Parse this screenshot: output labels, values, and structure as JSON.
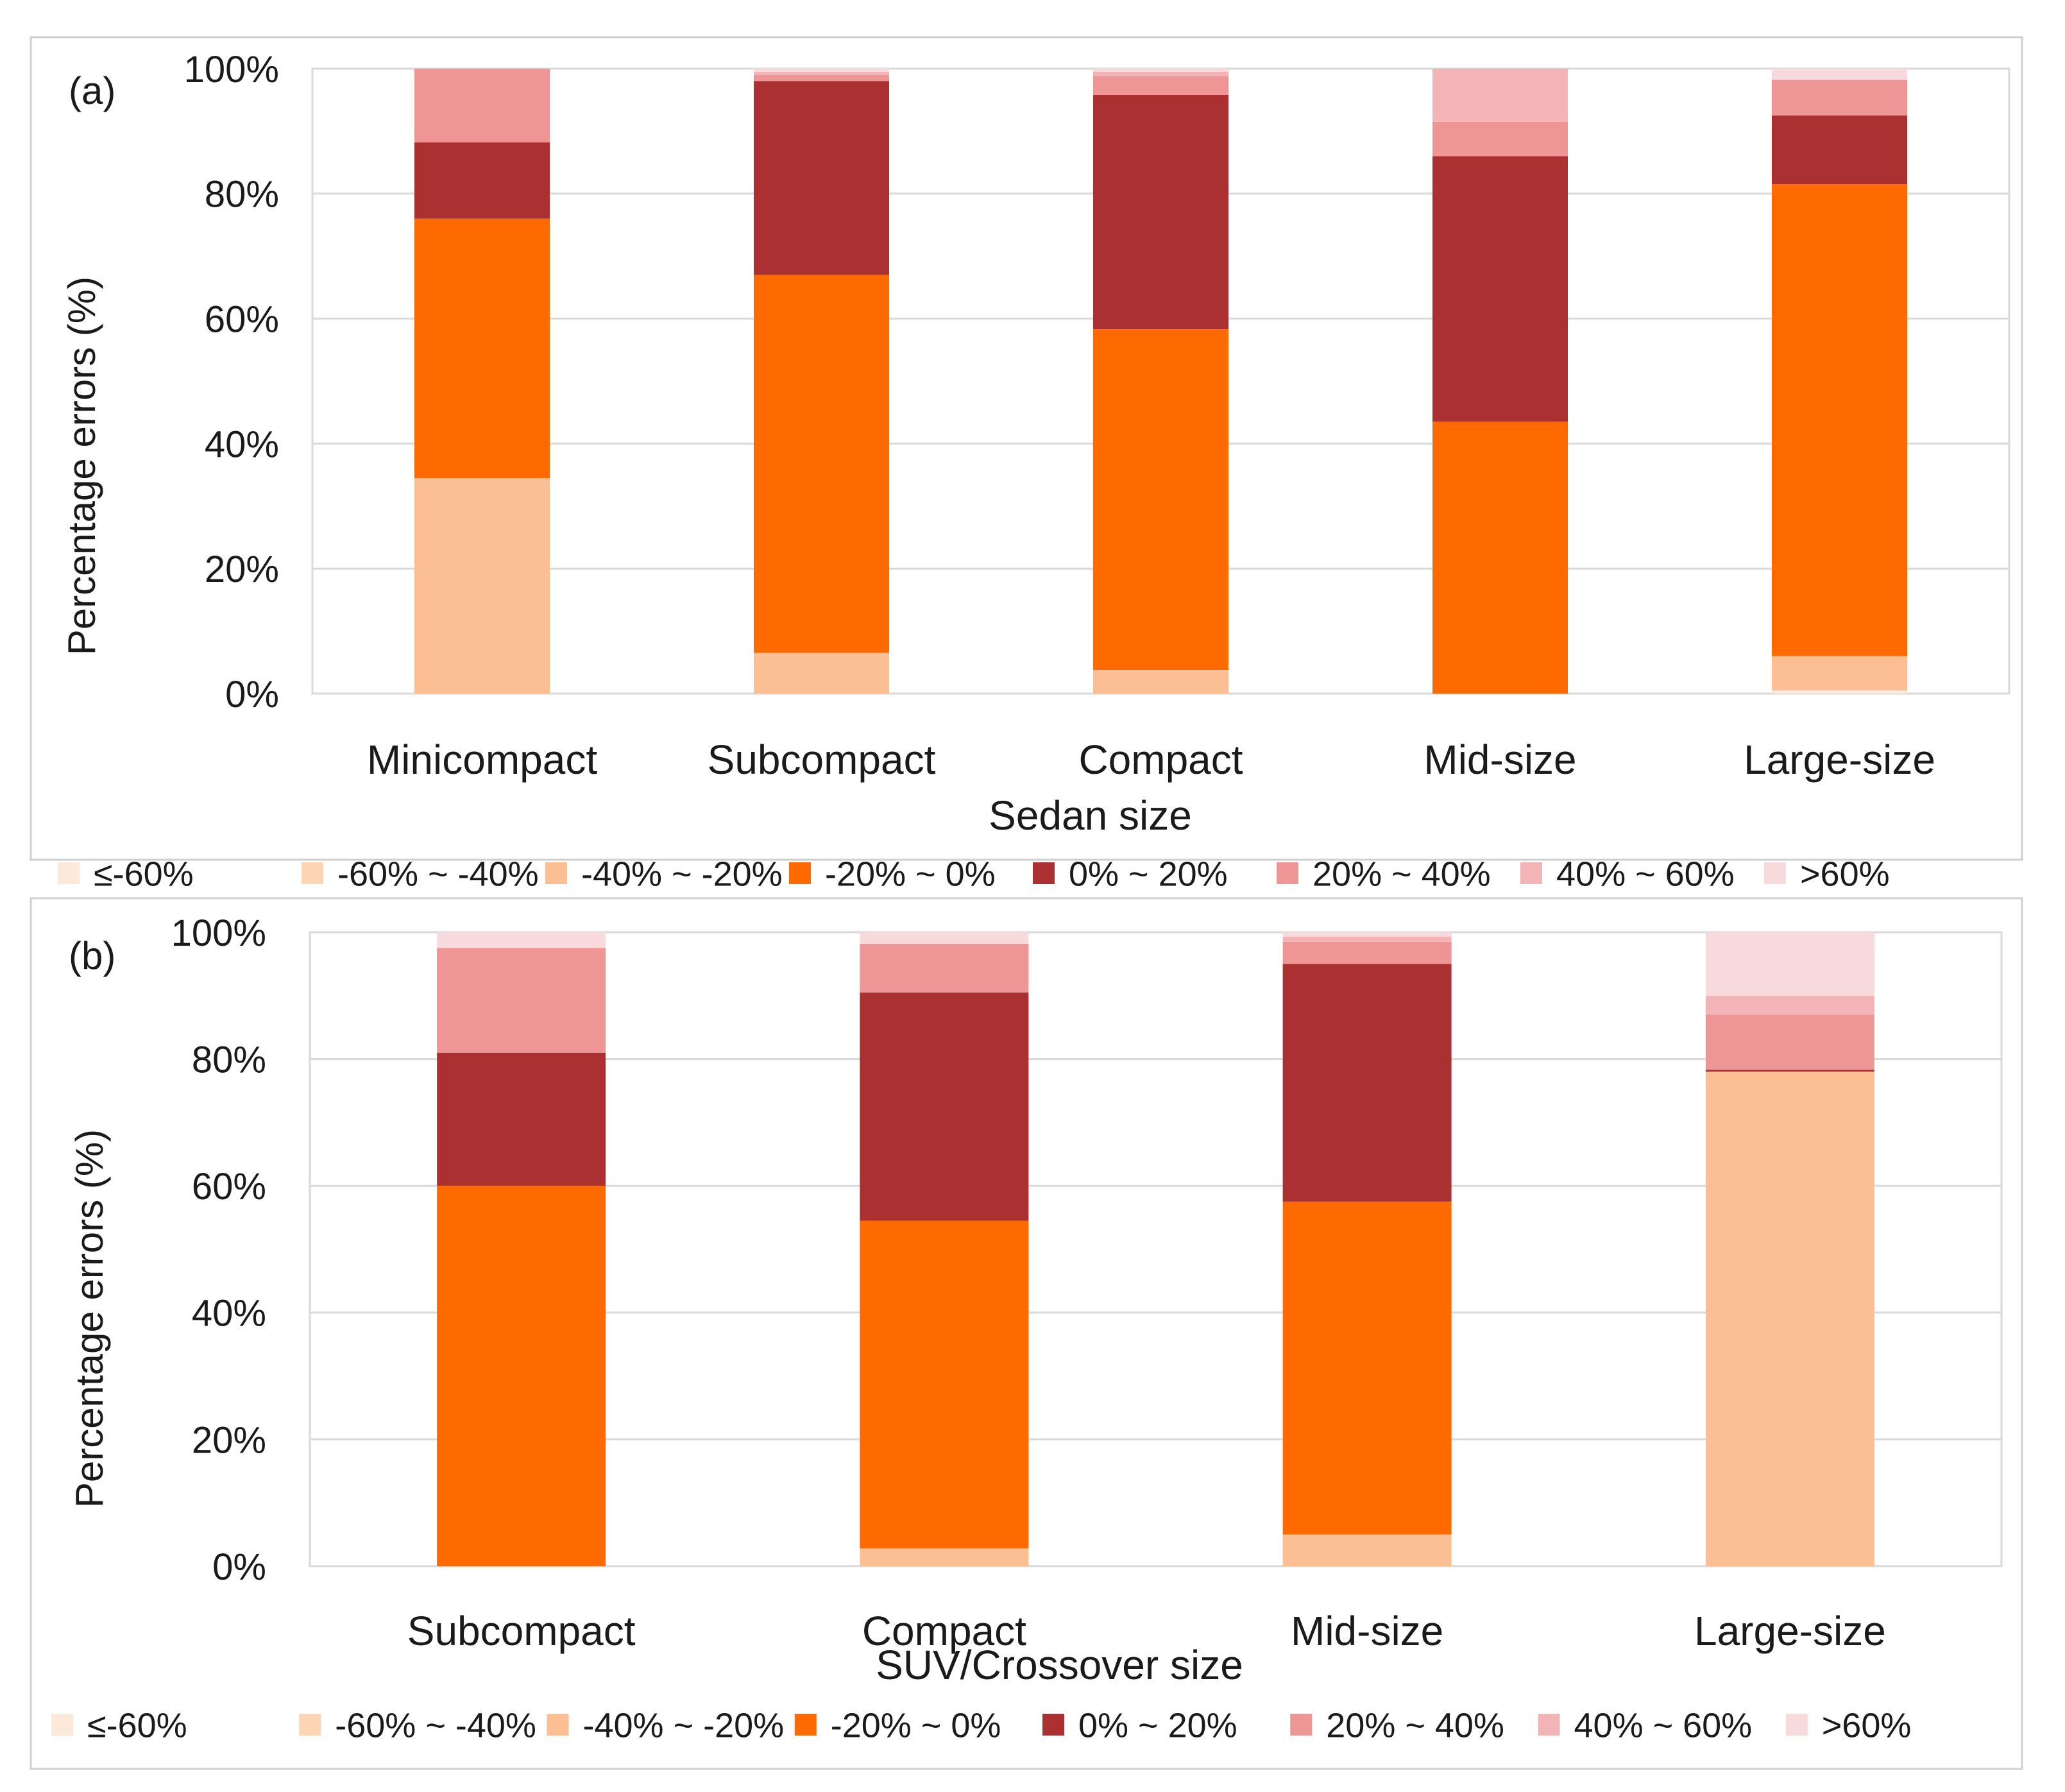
{
  "figure": {
    "background": "#ffffff",
    "frame_color": "#d0d0d0",
    "grid_color": "#d9d9d9"
  },
  "chart_data": [
    {
      "type": "bar",
      "stacked": true,
      "panel_label": "(a)",
      "ylabel": "Percentage errors (%)",
      "xlabel": "Sedan size",
      "ylim": [
        0,
        100
      ],
      "yticks": [
        "0%",
        "20%",
        "40%",
        "60%",
        "80%",
        "100%"
      ],
      "grid": true,
      "legend_position": "bottom",
      "categories": [
        "Minicompact",
        "Subcompact",
        "Compact",
        "Mid-size",
        "Large-size"
      ],
      "series": [
        {
          "name": "≤-60%",
          "color": "#fde9d9",
          "values": [
            0,
            0,
            0,
            0,
            0.5
          ]
        },
        {
          "name": "-60% ~ -40%",
          "color": "#fcd5b4",
          "values": [
            0,
            0,
            0,
            0,
            0
          ]
        },
        {
          "name": "-40% ~ -20%",
          "color": "#fbbf93",
          "values": [
            34.5,
            6.5,
            3.8,
            0,
            5.5
          ]
        },
        {
          "name": "-20% ~ 0%",
          "color": "#ff6a00",
          "values": [
            41.5,
            60.5,
            54.5,
            43.5,
            75.5
          ]
        },
        {
          "name": "0% ~ 20%",
          "color": "#ab3032",
          "values": [
            12.2,
            31,
            37.5,
            42.5,
            11
          ]
        },
        {
          "name": "20% ~ 40%",
          "color": "#ee9595",
          "values": [
            11.8,
            1,
            3,
            5.5,
            5.7
          ]
        },
        {
          "name": "40% ~ 60%",
          "color": "#f2b4b6",
          "values": [
            0,
            0.5,
            0.7,
            8.5,
            0
          ]
        },
        {
          "name": ">60%",
          "color": "#f8dadd",
          "values": [
            0,
            0.5,
            0.5,
            0,
            1.8
          ]
        }
      ]
    },
    {
      "type": "bar",
      "stacked": true,
      "panel_label": "(b)",
      "ylabel": "Percentage errors (%)",
      "xlabel": "SUV/Crossover size",
      "ylim": [
        0,
        100
      ],
      "yticks": [
        "0%",
        "20%",
        "40%",
        "60%",
        "80%",
        "100%"
      ],
      "grid": true,
      "legend_position": "bottom",
      "categories": [
        "Subcompact",
        "Compact",
        "Mid-size",
        "Large-size"
      ],
      "series": [
        {
          "name": "≤-60%",
          "color": "#fde9d9",
          "values": [
            0,
            0,
            0,
            0
          ]
        },
        {
          "name": "-60% ~ -40%",
          "color": "#fcd5b4",
          "values": [
            0,
            0,
            0,
            0
          ]
        },
        {
          "name": "-40% ~ -20%",
          "color": "#fbbf93",
          "values": [
            0,
            2.8,
            5,
            78
          ]
        },
        {
          "name": "-20% ~ 0%",
          "color": "#ff6a00",
          "values": [
            60,
            51.7,
            52.5,
            0
          ]
        },
        {
          "name": "0% ~ 20%",
          "color": "#ab3032",
          "values": [
            21,
            36,
            37.5,
            0.3
          ]
        },
        {
          "name": "20% ~ 40%",
          "color": "#ee9595",
          "values": [
            16.5,
            7.7,
            3.5,
            8.7
          ]
        },
        {
          "name": "40% ~ 60%",
          "color": "#f2b4b6",
          "values": [
            0,
            0,
            0.8,
            3
          ]
        },
        {
          "name": ">60%",
          "color": "#f8dadd",
          "values": [
            2.5,
            1.8,
            0.7,
            10
          ]
        }
      ]
    }
  ]
}
